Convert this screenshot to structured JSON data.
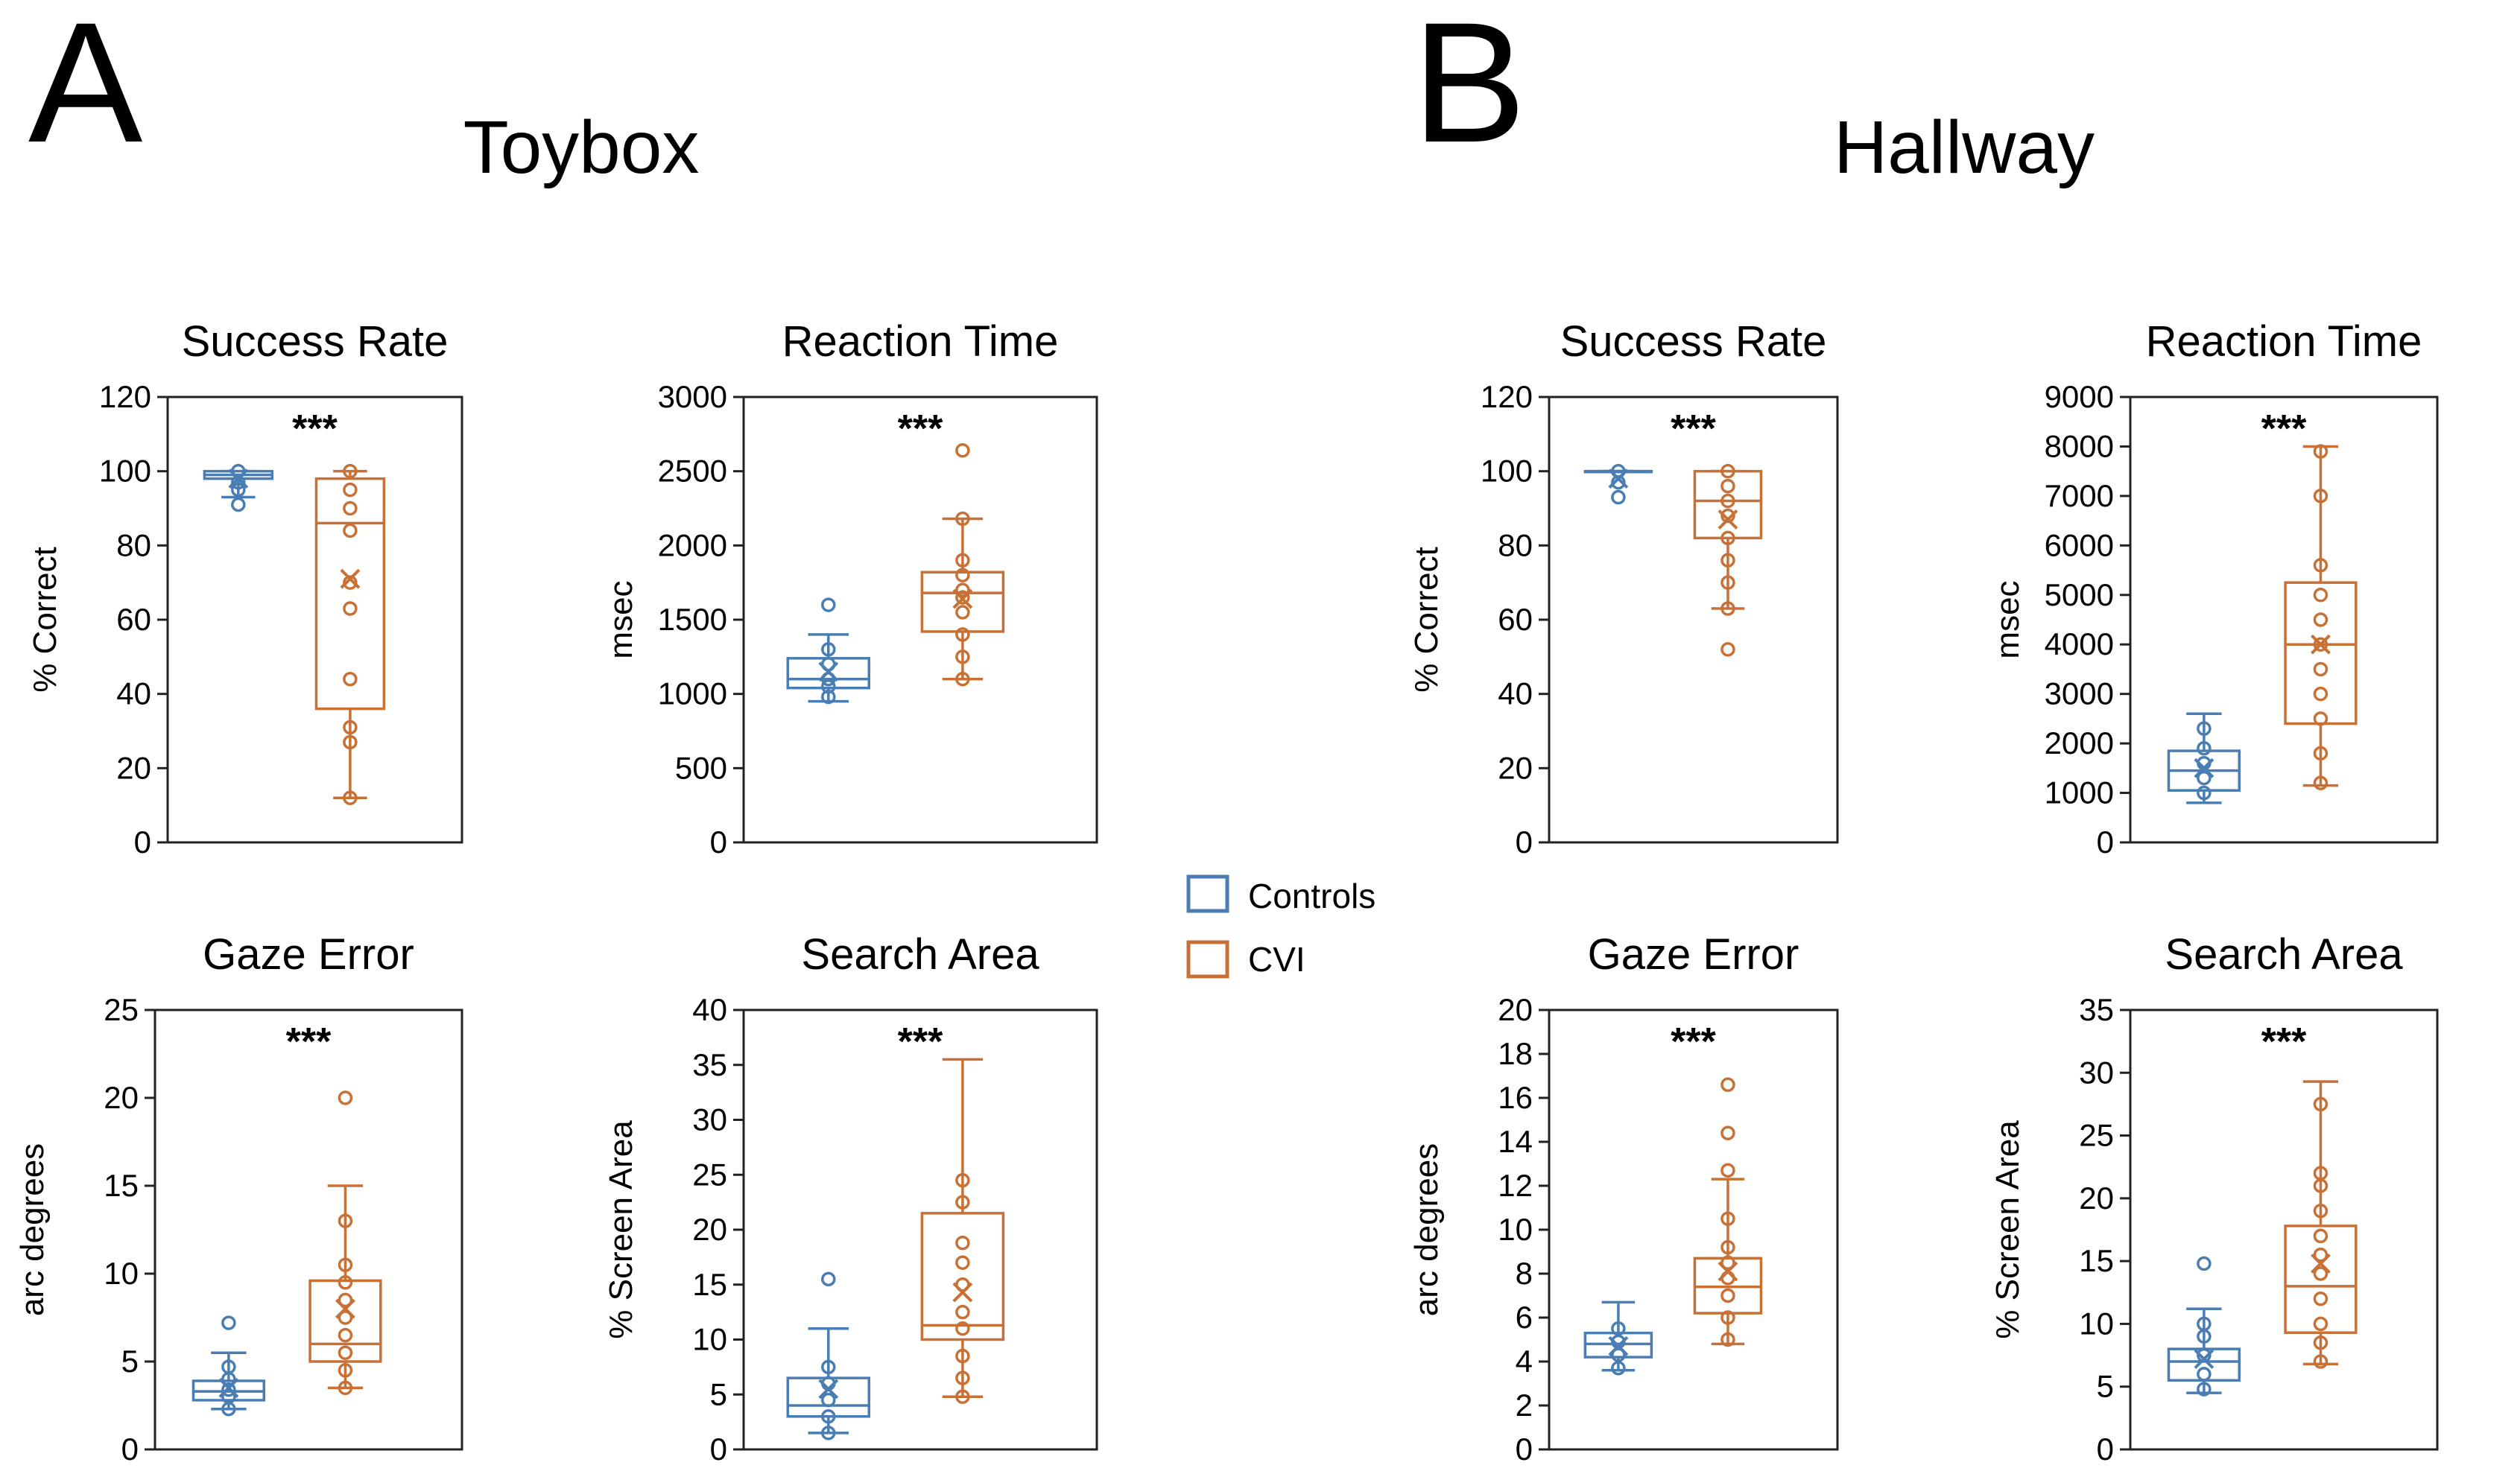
{
  "panels": [
    {
      "letter": "A",
      "title": "Toybox"
    },
    {
      "letter": "B",
      "title": "Hallway"
    }
  ],
  "legend": [
    {
      "label": "Controls",
      "color": "#4a7eb3"
    },
    {
      "label": "CVI",
      "color": "#c87137"
    }
  ],
  "chart_data": [
    {
      "type": "box",
      "panel": "A",
      "title": "Success Rate",
      "ylabel": "% Correct",
      "ylim": [
        0,
        120
      ],
      "yticks": [
        0,
        20,
        40,
        60,
        80,
        100,
        120
      ],
      "significance": "***",
      "series": [
        {
          "name": "Controls",
          "min": 93,
          "q1": 98,
          "median": 99,
          "q3": 100,
          "max": 100,
          "mean": 98,
          "points": [
            91,
            95,
            97,
            100
          ]
        },
        {
          "name": "CVI",
          "min": 12,
          "q1": 36,
          "median": 86,
          "q3": 98,
          "max": 100,
          "mean": 71,
          "points": [
            12,
            27,
            31,
            44,
            63,
            70,
            84,
            90,
            95,
            100
          ]
        }
      ]
    },
    {
      "type": "box",
      "panel": "A",
      "title": "Reaction Time",
      "ylabel": "msec",
      "ylim": [
        0,
        3000
      ],
      "yticks": [
        0,
        500,
        1000,
        1500,
        2000,
        2500,
        3000
      ],
      "significance": "***",
      "series": [
        {
          "name": "Controls",
          "min": 950,
          "q1": 1040,
          "median": 1100,
          "q3": 1240,
          "max": 1400,
          "mean": 1150,
          "points": [
            980,
            1050,
            1100,
            1200,
            1300,
            1600
          ]
        },
        {
          "name": "CVI",
          "min": 1100,
          "q1": 1420,
          "median": 1680,
          "q3": 1820,
          "max": 2180,
          "mean": 1640,
          "points": [
            1100,
            1250,
            1400,
            1550,
            1650,
            1700,
            1800,
            1900,
            2180,
            2640
          ]
        }
      ]
    },
    {
      "type": "box",
      "panel": "A",
      "title": "Gaze Error",
      "ylabel": "arc degrees",
      "ylim": [
        0,
        25
      ],
      "yticks": [
        0,
        5,
        10,
        15,
        20,
        25
      ],
      "significance": "***",
      "series": [
        {
          "name": "Controls",
          "min": 2.3,
          "q1": 2.8,
          "median": 3.3,
          "q3": 3.9,
          "max": 5.5,
          "mean": 3.5,
          "points": [
            2.3,
            3.0,
            3.4,
            4.0,
            4.7,
            7.2
          ]
        },
        {
          "name": "CVI",
          "min": 3.5,
          "q1": 5.0,
          "median": 6.0,
          "q3": 9.6,
          "max": 15.0,
          "mean": 8.0,
          "points": [
            3.5,
            4.5,
            5.5,
            6.5,
            7.5,
            8.5,
            9.5,
            10.5,
            13.0,
            20.0
          ]
        }
      ]
    },
    {
      "type": "box",
      "panel": "A",
      "title": "Search Area",
      "ylabel": "% Screen Area",
      "ylim": [
        0,
        40
      ],
      "yticks": [
        0,
        5,
        10,
        15,
        20,
        25,
        30,
        35,
        40
      ],
      "significance": "***",
      "series": [
        {
          "name": "Controls",
          "min": 1.5,
          "q1": 3.0,
          "median": 4.0,
          "q3": 6.5,
          "max": 11.0,
          "mean": 5.5,
          "points": [
            1.5,
            3.0,
            4.5,
            6.0,
            7.5,
            15.5
          ]
        },
        {
          "name": "CVI",
          "min": 4.8,
          "q1": 10.0,
          "median": 11.3,
          "q3": 21.5,
          "max": 35.5,
          "mean": 14.3,
          "points": [
            4.8,
            6.5,
            8.5,
            11.0,
            12.5,
            15.0,
            17.0,
            18.8,
            22.5,
            24.5
          ]
        }
      ]
    },
    {
      "type": "box",
      "panel": "B",
      "title": "Success Rate",
      "ylabel": "% Correct",
      "ylim": [
        0,
        120
      ],
      "yticks": [
        0,
        20,
        40,
        60,
        80,
        100,
        120
      ],
      "significance": "***",
      "series": [
        {
          "name": "Controls",
          "min": 100,
          "q1": 100,
          "median": 100,
          "q3": 100,
          "max": 100,
          "mean": 98,
          "points": [
            93,
            97,
            100
          ]
        },
        {
          "name": "CVI",
          "min": 63,
          "q1": 82,
          "median": 92,
          "q3": 100,
          "max": 100,
          "mean": 87,
          "points": [
            52,
            63,
            70,
            76,
            82,
            88,
            92,
            96,
            100
          ]
        }
      ]
    },
    {
      "type": "box",
      "panel": "B",
      "title": "Reaction Time",
      "ylabel": "msec",
      "ylim": [
        0,
        9000
      ],
      "yticks": [
        0,
        1000,
        2000,
        3000,
        4000,
        5000,
        6000,
        7000,
        8000,
        9000
      ],
      "significance": "***",
      "series": [
        {
          "name": "Controls",
          "min": 800,
          "q1": 1050,
          "median": 1450,
          "q3": 1850,
          "max": 2600,
          "mean": 1500,
          "points": [
            1000,
            1300,
            1600,
            1900,
            2300
          ]
        },
        {
          "name": "CVI",
          "min": 1150,
          "q1": 2400,
          "median": 4000,
          "q3": 5250,
          "max": 8000,
          "mean": 4000,
          "points": [
            1200,
            1800,
            2500,
            3000,
            3500,
            4000,
            4500,
            5000,
            5600,
            7000,
            7900
          ]
        }
      ]
    },
    {
      "type": "box",
      "panel": "B",
      "title": "Gaze Error",
      "ylabel": "arc degrees",
      "ylim": [
        0,
        20
      ],
      "yticks": [
        0,
        2,
        4,
        6,
        8,
        10,
        12,
        14,
        16,
        18,
        20
      ],
      "significance": "***",
      "series": [
        {
          "name": "Controls",
          "min": 3.6,
          "q1": 4.2,
          "median": 4.8,
          "q3": 5.3,
          "max": 6.7,
          "mean": 4.7,
          "points": [
            3.7,
            4.3,
            4.9,
            5.5
          ]
        },
        {
          "name": "CVI",
          "min": 4.8,
          "q1": 6.2,
          "median": 7.4,
          "q3": 8.7,
          "max": 12.3,
          "mean": 8.1,
          "points": [
            5.0,
            6.0,
            7.0,
            7.8,
            8.5,
            9.2,
            10.5,
            12.7,
            14.4,
            16.6
          ]
        }
      ]
    },
    {
      "type": "box",
      "panel": "B",
      "title": "Search Area",
      "ylabel": "% Screen Area",
      "ylim": [
        0,
        35
      ],
      "yticks": [
        0,
        5,
        10,
        15,
        20,
        25,
        30,
        35
      ],
      "significance": "***",
      "series": [
        {
          "name": "Controls",
          "min": 4.5,
          "q1": 5.5,
          "median": 7.0,
          "q3": 8.0,
          "max": 11.2,
          "mean": 7.2,
          "points": [
            4.8,
            6.0,
            7.5,
            9.0,
            10.0,
            14.8
          ]
        },
        {
          "name": "CVI",
          "min": 6.8,
          "q1": 9.3,
          "median": 13.0,
          "q3": 17.8,
          "max": 29.3,
          "mean": 14.8,
          "points": [
            7.0,
            8.5,
            10.0,
            12.0,
            14.0,
            15.5,
            17.0,
            19.0,
            21.0,
            22.0,
            27.5
          ]
        }
      ]
    }
  ]
}
